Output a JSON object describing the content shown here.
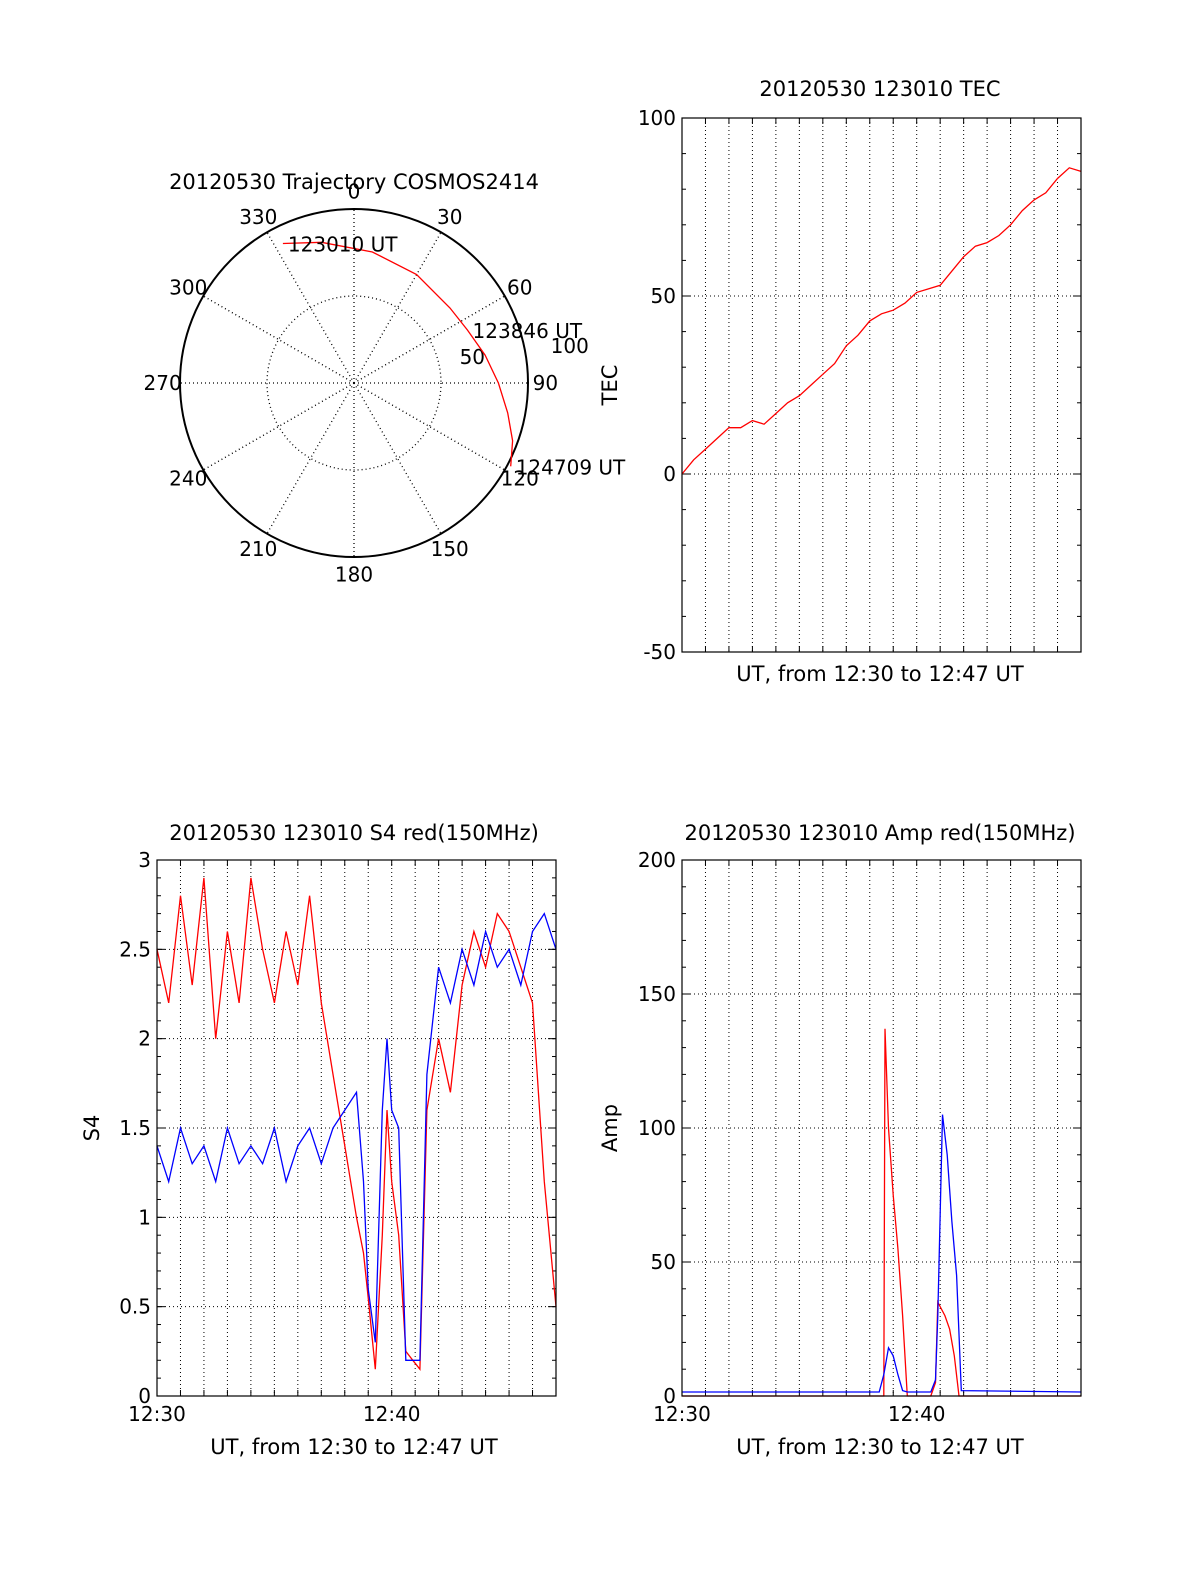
{
  "chart_data": [
    {
      "type": "polar",
      "title": "20120530 Trajectory COSMOS2414",
      "angle_labels": [
        "0",
        "30",
        "60",
        "90",
        "120",
        "150",
        "180",
        "210",
        "240",
        "270",
        "300",
        "330"
      ],
      "radial_labels": [
        "50",
        "100"
      ],
      "rlim": [
        0,
        100
      ],
      "grid": true,
      "series": [
        {
          "color": "#ff0000",
          "points": [
            {
              "az": 333,
              "r": 90
            },
            {
              "az": 347,
              "r": 83
            },
            {
              "az": 8,
              "r": 76
            },
            {
              "az": 30,
              "r": 72
            },
            {
              "az": 52,
              "r": 70
            },
            {
              "az": 65,
              "r": 72
            },
            {
              "az": 78,
              "r": 77
            },
            {
              "az": 90,
              "r": 83
            },
            {
              "az": 101,
              "r": 90
            },
            {
              "az": 110,
              "r": 97
            },
            {
              "az": 118,
              "r": 102
            }
          ]
        }
      ],
      "annotations": [
        {
          "text": "123010 UT",
          "az": 333,
          "r": 90
        },
        {
          "text": "123846 UT",
          "az": 65,
          "r": 72
        },
        {
          "text": "124709 UT",
          "az": 118,
          "r": 102
        }
      ]
    },
    {
      "type": "line",
      "title": "20120530 123010 TEC",
      "xlabel": "UT, from 12:30 to 12:47 UT",
      "ylabel": "TEC",
      "xlim": [
        0,
        17
      ],
      "ylim": [
        -50,
        100
      ],
      "yticks": [
        "-50",
        "0",
        "50",
        "100"
      ],
      "grid": true,
      "series": [
        {
          "color": "#ff0000",
          "x": [
            0,
            0.5,
            1,
            1.5,
            2,
            2.5,
            3,
            3.5,
            4,
            4.5,
            5,
            5.5,
            6,
            6.5,
            7,
            7.5,
            8,
            8.5,
            9,
            9.5,
            10,
            10.5,
            11,
            11.5,
            12,
            12.5,
            13,
            13.5,
            14,
            14.5,
            15,
            15.5,
            16,
            16.5,
            17
          ],
          "y": [
            0,
            4,
            7,
            10,
            13,
            13,
            15,
            14,
            17,
            20,
            22,
            25,
            28,
            31,
            36,
            39,
            43,
            45,
            46,
            48,
            51,
            52,
            53,
            57,
            61,
            64,
            65,
            67,
            70,
            74,
            77,
            79,
            83,
            86,
            85
          ]
        }
      ]
    },
    {
      "type": "line",
      "title": "20120530 123010 S4 red(150MHz)",
      "xlabel": "UT, from 12:30 to 12:47 UT",
      "ylabel": "S4",
      "xlim": [
        0,
        17
      ],
      "ylim": [
        0,
        3
      ],
      "xticks": [
        {
          "value": 0,
          "label": "12:30"
        },
        {
          "value": 10,
          "label": "12:40"
        }
      ],
      "yticks": [
        "0",
        "0.5",
        "1",
        "1.5",
        "2",
        "2.5",
        "3"
      ],
      "grid": true,
      "series": [
        {
          "color": "#ff0000",
          "x": [
            0,
            0.5,
            1,
            1.5,
            2,
            2.5,
            3,
            3.5,
            4,
            4.5,
            5,
            5.5,
            6,
            6.5,
            7,
            7.5,
            8,
            8.5,
            8.8,
            9,
            9.3,
            9.6,
            9.8,
            10,
            10.3,
            10.6,
            10.9,
            11.2,
            11.5,
            12,
            12.5,
            13,
            13.5,
            14,
            14.5,
            15,
            15.5,
            16,
            16.5,
            17
          ],
          "y": [
            2.5,
            2.2,
            2.8,
            2.3,
            2.9,
            2.0,
            2.6,
            2.2,
            2.9,
            2.5,
            2.2,
            2.6,
            2.3,
            2.8,
            2.2,
            1.8,
            1.4,
            1.0,
            0.8,
            0.55,
            0.15,
            0.9,
            1.6,
            1.2,
            0.9,
            0.25,
            0.2,
            0.15,
            1.6,
            2.0,
            1.7,
            2.3,
            2.6,
            2.4,
            2.7,
            2.6,
            2.4,
            2.2,
            1.2,
            0.5
          ]
        },
        {
          "color": "#0000ff",
          "x": [
            0,
            0.5,
            1,
            1.5,
            2,
            2.5,
            3,
            3.5,
            4,
            4.5,
            5,
            5.5,
            6,
            6.5,
            7,
            7.5,
            8,
            8.5,
            8.8,
            9,
            9.3,
            9.6,
            9.8,
            10,
            10.3,
            10.6,
            10.9,
            11.2,
            11.5,
            12,
            12.5,
            13,
            13.5,
            14,
            14.5,
            15,
            15.5,
            16,
            16.5,
            17
          ],
          "y": [
            1.4,
            1.2,
            1.5,
            1.3,
            1.4,
            1.2,
            1.5,
            1.3,
            1.4,
            1.3,
            1.5,
            1.2,
            1.4,
            1.5,
            1.3,
            1.5,
            1.6,
            1.7,
            1.2,
            0.6,
            0.3,
            1.6,
            2.0,
            1.6,
            1.5,
            0.2,
            0.2,
            0.2,
            1.8,
            2.4,
            2.2,
            2.5,
            2.3,
            2.6,
            2.4,
            2.5,
            2.3,
            2.6,
            2.7,
            2.5
          ]
        }
      ]
    },
    {
      "type": "line",
      "title": "20120530 123010 Amp red(150MHz)",
      "xlabel": "UT, from 12:30 to 12:47 UT",
      "ylabel": "Amp",
      "xlim": [
        0,
        17
      ],
      "ylim": [
        0,
        200
      ],
      "xticks": [
        {
          "value": 0,
          "label": "12:30"
        },
        {
          "value": 10,
          "label": "12:40"
        }
      ],
      "yticks": [
        "0",
        "50",
        "100",
        "150",
        "200"
      ],
      "grid": true,
      "series": [
        {
          "color": "#ff0000",
          "x": [
            0,
            8.4,
            8.6,
            8.65,
            8.8,
            9.0,
            9.2,
            9.4,
            9.6,
            10.6,
            10.8,
            10.9,
            11.2,
            11.4,
            11.6,
            11.8,
            17
          ],
          "y": [
            0,
            0,
            0,
            137,
            100,
            75,
            55,
            30,
            0,
            0,
            5,
            35,
            30,
            25,
            15,
            0,
            0
          ]
        },
        {
          "color": "#0000ff",
          "x": [
            0,
            8.4,
            8.6,
            8.8,
            9.0,
            9.2,
            9.4,
            9.6,
            10.6,
            10.8,
            10.9,
            11.1,
            11.3,
            11.5,
            11.7,
            11.9,
            17
          ],
          "y": [
            1.5,
            1.5,
            8,
            18,
            15,
            8,
            2,
            1.5,
            1.5,
            6,
            30,
            105,
            90,
            65,
            45,
            2,
            1.5
          ]
        }
      ]
    }
  ]
}
